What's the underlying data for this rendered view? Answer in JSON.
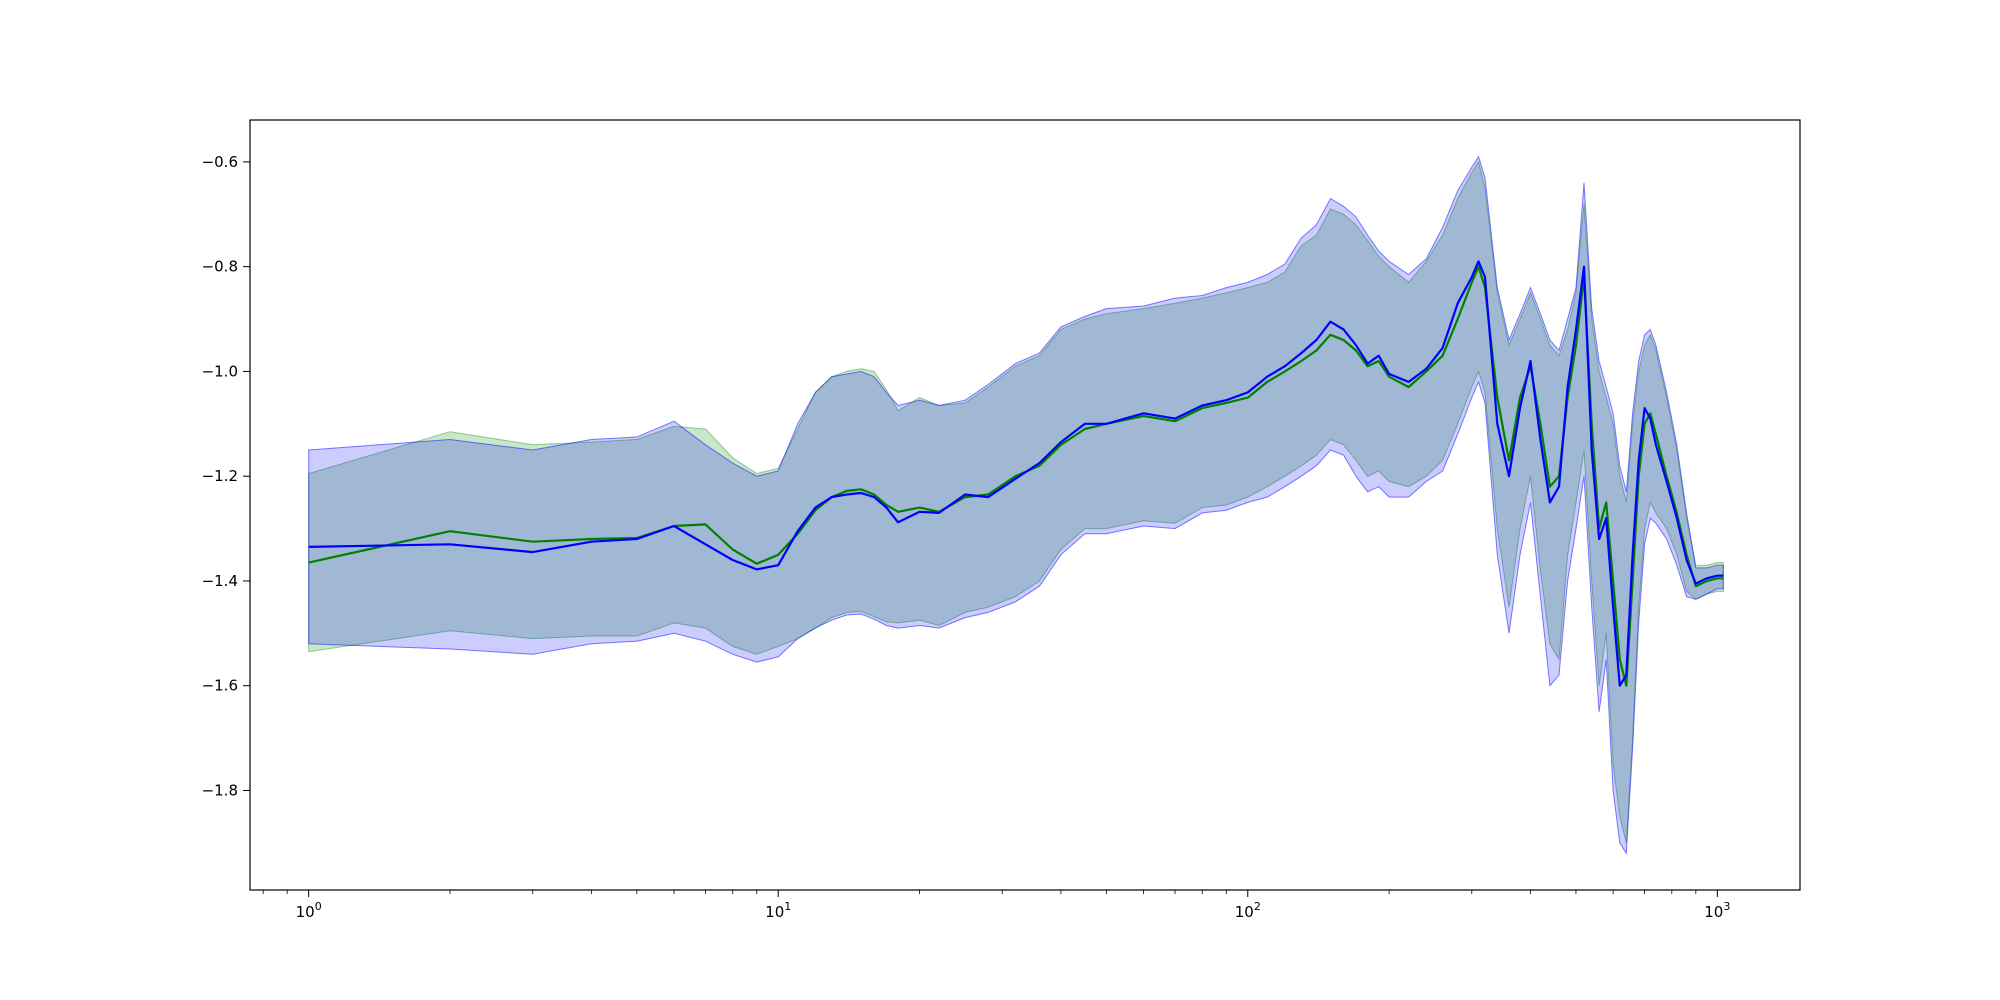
{
  "chart_data": {
    "type": "line",
    "x_scale": "log",
    "xlim": [
      0.75,
      1500
    ],
    "ylim": [
      -1.99,
      -0.52
    ],
    "grid": false,
    "x_ticks": [
      {
        "value": 1,
        "base": "10",
        "exp": "0"
      },
      {
        "value": 10,
        "base": "10",
        "exp": "1"
      },
      {
        "value": 100,
        "base": "10",
        "exp": "2"
      },
      {
        "value": 1000,
        "base": "10",
        "exp": "3"
      }
    ],
    "y_ticks": [
      {
        "value": -0.6,
        "label": "−0.6"
      },
      {
        "value": -0.8,
        "label": "−0.8"
      },
      {
        "value": -1.0,
        "label": "−1.0"
      },
      {
        "value": -1.2,
        "label": "−1.2"
      },
      {
        "value": -1.4,
        "label": "−1.4"
      },
      {
        "value": -1.6,
        "label": "−1.6"
      },
      {
        "value": -1.8,
        "label": "−1.8"
      }
    ],
    "series": [
      {
        "color": "#008000",
        "band_color": "#2ca02c",
        "band_opacity": 0.25,
        "points": [
          [
            1,
            -1.365,
            -1.535,
            -1.195
          ],
          [
            2,
            -1.305,
            -1.495,
            -1.115
          ],
          [
            3,
            -1.325,
            -1.51,
            -1.14
          ],
          [
            4,
            -1.32,
            -1.505,
            -1.135
          ],
          [
            5,
            -1.318,
            -1.505,
            -1.13
          ],
          [
            6,
            -1.295,
            -1.48,
            -1.105
          ],
          [
            7,
            -1.292,
            -1.49,
            -1.11
          ],
          [
            8,
            -1.34,
            -1.525,
            -1.165
          ],
          [
            9,
            -1.367,
            -1.54,
            -1.195
          ],
          [
            10,
            -1.35,
            -1.525,
            -1.185
          ],
          [
            11,
            -1.31,
            -1.51,
            -1.11
          ],
          [
            12,
            -1.265,
            -1.49,
            -1.04
          ],
          [
            13,
            -1.24,
            -1.47,
            -1.01
          ],
          [
            14,
            -1.228,
            -1.46,
            -1.0
          ],
          [
            15,
            -1.225,
            -1.458,
            -0.995
          ],
          [
            16,
            -1.235,
            -1.468,
            -1.0
          ],
          [
            17,
            -1.255,
            -1.478,
            -1.035
          ],
          [
            18,
            -1.268,
            -1.48,
            -1.075
          ],
          [
            20,
            -1.26,
            -1.475,
            -1.05
          ],
          [
            22,
            -1.268,
            -1.485,
            -1.065
          ],
          [
            25,
            -1.24,
            -1.46,
            -1.06
          ],
          [
            28,
            -1.235,
            -1.45,
            -1.03
          ],
          [
            32,
            -1.2,
            -1.43,
            -0.99
          ],
          [
            36,
            -1.18,
            -1.4,
            -0.97
          ],
          [
            40,
            -1.14,
            -1.34,
            -0.92
          ],
          [
            45,
            -1.11,
            -1.3,
            -0.9
          ],
          [
            50,
            -1.1,
            -1.3,
            -0.89
          ],
          [
            60,
            -1.085,
            -1.285,
            -0.88
          ],
          [
            70,
            -1.095,
            -1.29,
            -0.87
          ],
          [
            80,
            -1.07,
            -1.26,
            -0.86
          ],
          [
            90,
            -1.06,
            -1.255,
            -0.85
          ],
          [
            100,
            -1.05,
            -1.24,
            -0.84
          ],
          [
            110,
            -1.02,
            -1.22,
            -0.83
          ],
          [
            120,
            -1.0,
            -1.2,
            -0.81
          ],
          [
            130,
            -0.98,
            -1.18,
            -0.76
          ],
          [
            140,
            -0.96,
            -1.16,
            -0.74
          ],
          [
            150,
            -0.93,
            -1.13,
            -0.69
          ],
          [
            160,
            -0.94,
            -1.14,
            -0.7
          ],
          [
            170,
            -0.96,
            -1.17,
            -0.72
          ],
          [
            180,
            -0.99,
            -1.2,
            -0.75
          ],
          [
            190,
            -0.98,
            -1.19,
            -0.78
          ],
          [
            200,
            -1.01,
            -1.21,
            -0.8
          ],
          [
            220,
            -1.03,
            -1.22,
            -0.83
          ],
          [
            240,
            -1.0,
            -1.2,
            -0.79
          ],
          [
            260,
            -0.97,
            -1.17,
            -0.74
          ],
          [
            280,
            -0.9,
            -1.1,
            -0.67
          ],
          [
            300,
            -0.83,
            -1.03,
            -0.62
          ],
          [
            310,
            -0.8,
            -1.0,
            -0.6
          ],
          [
            320,
            -0.84,
            -1.04,
            -0.65
          ],
          [
            340,
            -1.05,
            -1.3,
            -0.85
          ],
          [
            360,
            -1.17,
            -1.45,
            -0.95
          ],
          [
            380,
            -1.05,
            -1.3,
            -0.9
          ],
          [
            400,
            -0.99,
            -1.2,
            -0.85
          ],
          [
            420,
            -1.1,
            -1.38,
            -0.9
          ],
          [
            440,
            -1.22,
            -1.52,
            -0.95
          ],
          [
            460,
            -1.2,
            -1.55,
            -0.97
          ],
          [
            480,
            -1.05,
            -1.35,
            -0.92
          ],
          [
            500,
            -0.95,
            -1.25,
            -0.85
          ],
          [
            520,
            -0.82,
            -1.15,
            -0.68
          ],
          [
            540,
            -1.1,
            -1.4,
            -0.9
          ],
          [
            560,
            -1.3,
            -1.6,
            -1.0
          ],
          [
            580,
            -1.25,
            -1.5,
            -1.05
          ],
          [
            600,
            -1.4,
            -1.75,
            -1.1
          ],
          [
            620,
            -1.55,
            -1.85,
            -1.2
          ],
          [
            640,
            -1.6,
            -1.9,
            -1.25
          ],
          [
            660,
            -1.4,
            -1.7,
            -1.1
          ],
          [
            680,
            -1.2,
            -1.45,
            -1.0
          ],
          [
            700,
            -1.1,
            -1.3,
            -0.95
          ],
          [
            720,
            -1.08,
            -1.25,
            -0.93
          ],
          [
            740,
            -1.12,
            -1.27,
            -0.96
          ],
          [
            780,
            -1.2,
            -1.3,
            -1.05
          ],
          [
            820,
            -1.27,
            -1.35,
            -1.15
          ],
          [
            860,
            -1.35,
            -1.42,
            -1.28
          ],
          [
            900,
            -1.41,
            -1.435,
            -1.37
          ],
          [
            950,
            -1.4,
            -1.425,
            -1.37
          ],
          [
            1000,
            -1.395,
            -1.42,
            -1.365
          ],
          [
            1030,
            -1.395,
            -1.42,
            -1.365
          ]
        ]
      },
      {
        "color": "#0000ff",
        "band_color": "#0000ff",
        "band_opacity": 0.2,
        "points": [
          [
            1,
            -1.335,
            -1.52,
            -1.15
          ],
          [
            2,
            -1.33,
            -1.53,
            -1.13
          ],
          [
            3,
            -1.345,
            -1.54,
            -1.15
          ],
          [
            4,
            -1.325,
            -1.52,
            -1.13
          ],
          [
            5,
            -1.32,
            -1.515,
            -1.125
          ],
          [
            6,
            -1.295,
            -1.5,
            -1.095
          ],
          [
            7,
            -1.33,
            -1.515,
            -1.14
          ],
          [
            8,
            -1.36,
            -1.54,
            -1.175
          ],
          [
            9,
            -1.378,
            -1.555,
            -1.2
          ],
          [
            10,
            -1.37,
            -1.545,
            -1.19
          ],
          [
            11,
            -1.305,
            -1.51,
            -1.1
          ],
          [
            12,
            -1.26,
            -1.49,
            -1.04
          ],
          [
            13,
            -1.24,
            -1.475,
            -1.01
          ],
          [
            14,
            -1.235,
            -1.465,
            -1.005
          ],
          [
            15,
            -1.232,
            -1.463,
            -1.0
          ],
          [
            16,
            -1.24,
            -1.473,
            -1.01
          ],
          [
            17,
            -1.26,
            -1.485,
            -1.04
          ],
          [
            18,
            -1.288,
            -1.49,
            -1.065
          ],
          [
            20,
            -1.268,
            -1.485,
            -1.055
          ],
          [
            22,
            -1.27,
            -1.49,
            -1.065
          ],
          [
            25,
            -1.235,
            -1.47,
            -1.055
          ],
          [
            28,
            -1.24,
            -1.46,
            -1.025
          ],
          [
            32,
            -1.205,
            -1.44,
            -0.985
          ],
          [
            36,
            -1.175,
            -1.41,
            -0.965
          ],
          [
            40,
            -1.135,
            -1.35,
            -0.915
          ],
          [
            45,
            -1.1,
            -1.31,
            -0.895
          ],
          [
            50,
            -1.1,
            -1.31,
            -0.88
          ],
          [
            60,
            -1.08,
            -1.295,
            -0.875
          ],
          [
            70,
            -1.09,
            -1.3,
            -0.86
          ],
          [
            80,
            -1.065,
            -1.27,
            -0.855
          ],
          [
            90,
            -1.055,
            -1.265,
            -0.84
          ],
          [
            100,
            -1.04,
            -1.25,
            -0.83
          ],
          [
            110,
            -1.01,
            -1.24,
            -0.815
          ],
          [
            120,
            -0.99,
            -1.22,
            -0.795
          ],
          [
            130,
            -0.965,
            -1.2,
            -0.745
          ],
          [
            140,
            -0.94,
            -1.18,
            -0.72
          ],
          [
            150,
            -0.905,
            -1.15,
            -0.67
          ],
          [
            160,
            -0.92,
            -1.16,
            -0.685
          ],
          [
            170,
            -0.95,
            -1.2,
            -0.705
          ],
          [
            180,
            -0.985,
            -1.23,
            -0.74
          ],
          [
            190,
            -0.97,
            -1.22,
            -0.77
          ],
          [
            200,
            -1.005,
            -1.24,
            -0.79
          ],
          [
            220,
            -1.02,
            -1.24,
            -0.815
          ],
          [
            240,
            -0.995,
            -1.21,
            -0.785
          ],
          [
            260,
            -0.955,
            -1.19,
            -0.725
          ],
          [
            280,
            -0.87,
            -1.12,
            -0.655
          ],
          [
            300,
            -0.82,
            -1.05,
            -0.61
          ],
          [
            310,
            -0.79,
            -1.02,
            -0.59
          ],
          [
            320,
            -0.82,
            -1.06,
            -0.63
          ],
          [
            340,
            -1.1,
            -1.35,
            -0.84
          ],
          [
            360,
            -1.2,
            -1.5,
            -0.94
          ],
          [
            380,
            -1.07,
            -1.35,
            -0.89
          ],
          [
            400,
            -0.98,
            -1.25,
            -0.84
          ],
          [
            420,
            -1.13,
            -1.43,
            -0.89
          ],
          [
            440,
            -1.25,
            -1.6,
            -0.94
          ],
          [
            460,
            -1.22,
            -1.58,
            -0.96
          ],
          [
            480,
            -1.03,
            -1.4,
            -0.9
          ],
          [
            500,
            -0.92,
            -1.3,
            -0.84
          ],
          [
            520,
            -0.8,
            -1.2,
            -0.64
          ],
          [
            540,
            -1.15,
            -1.45,
            -0.88
          ],
          [
            560,
            -1.32,
            -1.65,
            -0.98
          ],
          [
            580,
            -1.28,
            -1.55,
            -1.03
          ],
          [
            600,
            -1.45,
            -1.8,
            -1.08
          ],
          [
            620,
            -1.6,
            -1.9,
            -1.18
          ],
          [
            640,
            -1.58,
            -1.92,
            -1.23
          ],
          [
            660,
            -1.35,
            -1.72,
            -1.08
          ],
          [
            680,
            -1.17,
            -1.48,
            -0.98
          ],
          [
            700,
            -1.07,
            -1.33,
            -0.93
          ],
          [
            720,
            -1.09,
            -1.28,
            -0.92
          ],
          [
            740,
            -1.14,
            -1.29,
            -0.95
          ],
          [
            780,
            -1.21,
            -1.32,
            -1.04
          ],
          [
            820,
            -1.28,
            -1.37,
            -1.14
          ],
          [
            860,
            -1.36,
            -1.43,
            -1.27
          ],
          [
            900,
            -1.405,
            -1.435,
            -1.375
          ],
          [
            950,
            -1.395,
            -1.425,
            -1.375
          ],
          [
            1000,
            -1.39,
            -1.415,
            -1.37
          ],
          [
            1030,
            -1.39,
            -1.415,
            -1.37
          ]
        ]
      }
    ]
  }
}
